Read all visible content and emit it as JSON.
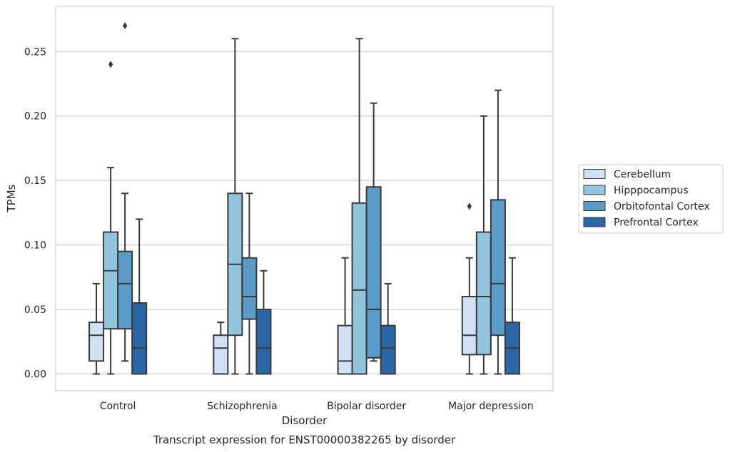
{
  "chart_data": {
    "type": "box",
    "title": "",
    "caption": "Transcript expression for ENST00000382265 by disorder",
    "xlabel": "Disorder",
    "ylabel": "TPMs",
    "ylim": [
      -0.013,
      0.285
    ],
    "yticks": [
      "0.00",
      "0.05",
      "0.10",
      "0.15",
      "0.20",
      "0.25"
    ],
    "grid": true,
    "legend_position": "right",
    "categories": [
      "Control",
      "Schizophrenia",
      "Bipolar disorder",
      "Major depression"
    ],
    "series": [
      {
        "name": "Cerebellum",
        "color": "#cfe1f2",
        "boxes": [
          {
            "whisker_low": 0.0,
            "q1": 0.01,
            "median": 0.03,
            "q3": 0.04,
            "whisker_high": 0.07,
            "outliers": []
          },
          {
            "whisker_low": 0.0,
            "q1": 0.0,
            "median": 0.02,
            "q3": 0.03,
            "whisker_high": 0.04,
            "outliers": []
          },
          {
            "whisker_low": 0.0,
            "q1": 0.0,
            "median": 0.01,
            "q3": 0.0375,
            "whisker_high": 0.09,
            "outliers": []
          },
          {
            "whisker_low": 0.0,
            "q1": 0.015,
            "median": 0.03,
            "q3": 0.06,
            "whisker_high": 0.09,
            "outliers": [
              0.13
            ]
          }
        ]
      },
      {
        "name": "Hipppocampus",
        "color": "#93c4de",
        "boxes": [
          {
            "whisker_low": 0.0,
            "q1": 0.035,
            "median": 0.08,
            "q3": 0.11,
            "whisker_high": 0.16,
            "outliers": [
              0.24
            ]
          },
          {
            "whisker_low": 0.0,
            "q1": 0.03,
            "median": 0.085,
            "q3": 0.14,
            "whisker_high": 0.26,
            "outliers": []
          },
          {
            "whisker_low": 0.0,
            "q1": 0.0,
            "median": 0.065,
            "q3": 0.1325,
            "whisker_high": 0.26,
            "outliers": []
          },
          {
            "whisker_low": 0.0,
            "q1": 0.015,
            "median": 0.06,
            "q3": 0.11,
            "whisker_high": 0.2,
            "outliers": []
          }
        ]
      },
      {
        "name": "Orbitofontal Cortex",
        "color": "#5a9bc7",
        "boxes": [
          {
            "whisker_low": 0.01,
            "q1": 0.035,
            "median": 0.07,
            "q3": 0.095,
            "whisker_high": 0.14,
            "outliers": [
              0.27
            ]
          },
          {
            "whisker_low": 0.0,
            "q1": 0.0425,
            "median": 0.06,
            "q3": 0.09,
            "whisker_high": 0.14,
            "outliers": []
          },
          {
            "whisker_low": 0.01,
            "q1": 0.0125,
            "median": 0.05,
            "q3": 0.145,
            "whisker_high": 0.21,
            "outliers": []
          },
          {
            "whisker_low": 0.0,
            "q1": 0.03,
            "median": 0.07,
            "q3": 0.135,
            "whisker_high": 0.22,
            "outliers": []
          }
        ]
      },
      {
        "name": "Prefrontal Cortex",
        "color": "#2b66a4",
        "boxes": [
          {
            "whisker_low": 0.0,
            "q1": 0.0,
            "median": 0.02,
            "q3": 0.055,
            "whisker_high": 0.12,
            "outliers": []
          },
          {
            "whisker_low": 0.0,
            "q1": 0.0,
            "median": 0.02,
            "q3": 0.05,
            "whisker_high": 0.08,
            "outliers": []
          },
          {
            "whisker_low": 0.0,
            "q1": 0.0,
            "median": 0.02,
            "q3": 0.0375,
            "whisker_high": 0.07,
            "outliers": []
          },
          {
            "whisker_low": 0.0,
            "q1": 0.0,
            "median": 0.02,
            "q3": 0.04,
            "whisker_high": 0.09,
            "outliers": []
          }
        ]
      }
    ]
  }
}
